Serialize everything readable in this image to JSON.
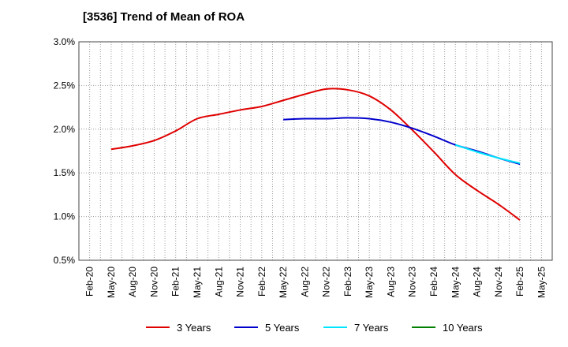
{
  "chart_data": {
    "type": "line",
    "title": "[3536]  Trend of Mean of ROA",
    "xlabel": "",
    "ylabel": "",
    "ylim": [
      0.5,
      3.0
    ],
    "y_ticks": [
      "0.5%",
      "1.0%",
      "1.5%",
      "2.0%",
      "2.5%",
      "3.0%"
    ],
    "y_tick_values": [
      0.5,
      1.0,
      1.5,
      2.0,
      2.5,
      3.0
    ],
    "grid": true,
    "legend_position": "bottom",
    "categories": [
      "Feb-20",
      "May-20",
      "Aug-20",
      "Nov-20",
      "Feb-21",
      "May-21",
      "Aug-21",
      "Nov-21",
      "Feb-22",
      "May-22",
      "Aug-22",
      "Nov-22",
      "Feb-23",
      "May-23",
      "Aug-23",
      "Nov-23",
      "Feb-24",
      "May-24",
      "Aug-24",
      "Nov-24",
      "Feb-25",
      "May-25"
    ],
    "series": [
      {
        "name": "3 Years",
        "color": "#e00000",
        "values": [
          null,
          1.77,
          1.81,
          1.87,
          1.98,
          2.12,
          2.17,
          2.22,
          2.26,
          2.33,
          2.4,
          2.46,
          2.45,
          2.38,
          2.22,
          1.99,
          1.74,
          1.48,
          1.3,
          1.14,
          0.96,
          null
        ]
      },
      {
        "name": "5 Years",
        "color": "#0000cc",
        "values": [
          null,
          null,
          null,
          null,
          null,
          null,
          null,
          null,
          null,
          2.11,
          2.12,
          2.12,
          2.13,
          2.12,
          2.08,
          2.01,
          1.92,
          1.82,
          1.75,
          1.67,
          1.6,
          null
        ]
      },
      {
        "name": "7 Years",
        "color": "#00e5ff",
        "values": [
          null,
          null,
          null,
          null,
          null,
          null,
          null,
          null,
          null,
          null,
          null,
          null,
          null,
          null,
          null,
          null,
          null,
          1.82,
          1.74,
          1.67,
          1.61,
          null
        ]
      },
      {
        "name": "10 Years",
        "color": "#008000",
        "values": [
          null,
          null,
          null,
          null,
          null,
          null,
          null,
          null,
          null,
          null,
          null,
          null,
          null,
          null,
          null,
          null,
          null,
          null,
          null,
          null,
          null,
          null
        ]
      }
    ]
  }
}
